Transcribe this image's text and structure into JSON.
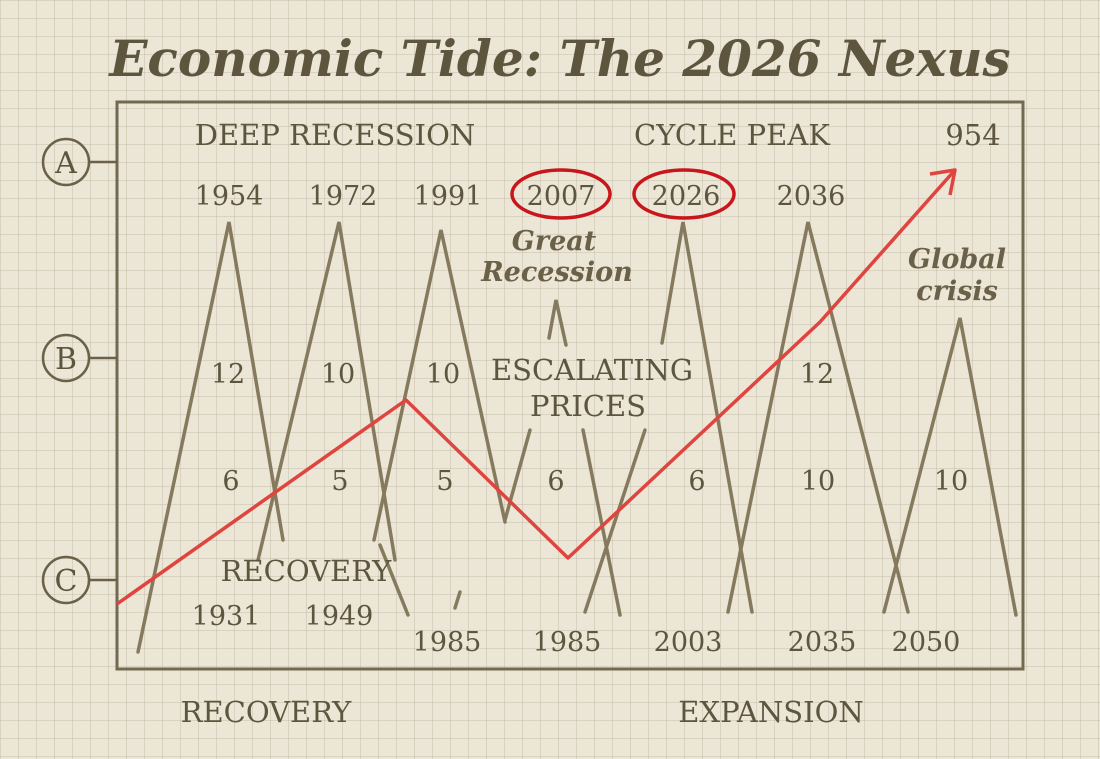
{
  "title": "Economic Tide: The 2026 Nexus",
  "axis_markers": [
    "A",
    "B",
    "C"
  ],
  "headers": {
    "deep_recession": "DEEP RECESSION",
    "cycle_peak": "CYCLE PEAK",
    "peak_value": "954"
  },
  "top_years": [
    "1954",
    "1972",
    "1991",
    "2007",
    "2026",
    "2036"
  ],
  "circled_years": [
    "2007",
    "2026"
  ],
  "bottom_years": [
    "1931",
    "1949",
    "1985",
    "1985",
    "2003",
    "2035",
    "2050"
  ],
  "mid_values": [
    "12",
    "10",
    "10",
    "12"
  ],
  "low_values": [
    "6",
    "5",
    "5",
    "6",
    "6",
    "10",
    "10"
  ],
  "annotations": {
    "great_recession_1": "Great",
    "great_recession_2": "Recession",
    "global_crisis_1": "Global",
    "global_crisis_2": "crisis",
    "escalating_1": "ESCALATING",
    "escalating_2": "PRICES",
    "recovery_inner": "RECOVERY"
  },
  "footer": {
    "left": "RECOVERY",
    "right": "EXPANSION"
  },
  "colors": {
    "ink": "#6b6048",
    "accent_red": "#e0443f",
    "circle_red": "#c9151c",
    "paper": "#ece6d6",
    "frame": "#726950"
  }
}
